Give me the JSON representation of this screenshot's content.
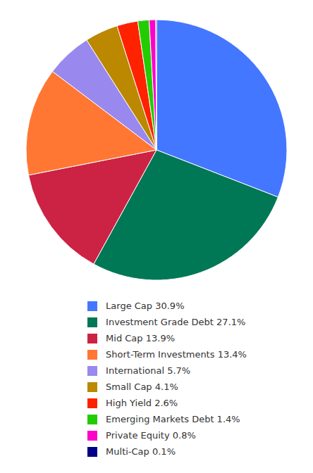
{
  "chart_data": {
    "type": "pie",
    "categories": [
      "Large Cap 30.9%",
      "Investment Grade Debt 27.1%",
      "Mid Cap 13.9%",
      "Short-Term Investments 13.4%",
      "International 5.7%",
      "Small Cap 4.1%",
      "High Yield 2.6%",
      "Emerging Markets Debt 1.4%",
      "Private Equity 0.8%",
      "Multi-Cap 0.1%"
    ],
    "values": [
      30.9,
      27.1,
      13.9,
      13.4,
      5.7,
      4.1,
      2.6,
      1.4,
      0.8,
      0.1
    ],
    "colors": [
      "#4477FF",
      "#007755",
      "#CC2244",
      "#FF7733",
      "#9988EE",
      "#BB8800",
      "#FF2200",
      "#22CC00",
      "#FF00CC",
      "#000088"
    ],
    "legend": "bottom"
  }
}
